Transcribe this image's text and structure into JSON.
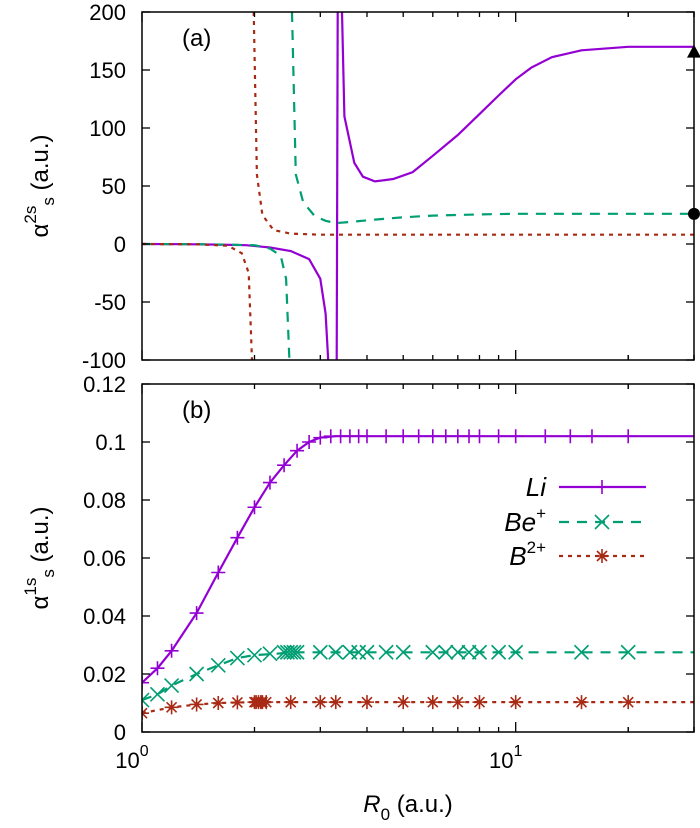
{
  "chart_data": [
    {
      "type": "line",
      "panel_label": "(a)",
      "ylabel": {
        "base": "α",
        "sup": "2s",
        "sub": "s",
        "unit": " (a.u.)"
      },
      "xscale": "log",
      "xlim": [
        1,
        30
      ],
      "ylim": [
        -100,
        200
      ],
      "yticks": [
        -100,
        -50,
        0,
        50,
        100,
        150,
        200
      ],
      "colors": {
        "Li": "#9400d3",
        "Be+": "#009e73",
        "B2+": "#a82a14"
      },
      "series": [
        {
          "key": "Li",
          "segments": [
            [
              [
                1.0,
                0
              ],
              [
                1.3,
                -0.2
              ],
              [
                1.6,
                -0.5
              ],
              [
                1.9,
                -1
              ],
              [
                2.2,
                -3
              ],
              [
                2.5,
                -6
              ],
              [
                2.8,
                -13
              ],
              [
                3.0,
                -30
              ],
              [
                3.1,
                -60
              ],
              [
                3.15,
                -100
              ]
            ],
            [
              [
                3.32,
                -100
              ],
              [
                3.34,
                200
              ]
            ],
            [
              [
                3.43,
                200
              ],
              [
                3.48,
                110
              ],
              [
                3.7,
                70
              ],
              [
                3.9,
                58
              ],
              [
                4.2,
                54
              ],
              [
                4.7,
                56
              ],
              [
                5.3,
                62
              ],
              [
                6.0,
                76
              ],
              [
                7.0,
                94
              ],
              [
                8.0,
                112
              ],
              [
                9.0,
                128
              ],
              [
                10.0,
                142
              ],
              [
                11.0,
                152
              ],
              [
                12.5,
                161
              ],
              [
                15.0,
                167
              ],
              [
                20.0,
                170
              ],
              [
                30.0,
                170
              ]
            ]
          ]
        },
        {
          "key": "Be+",
          "segments": [
            [
              [
                1.0,
                0
              ],
              [
                1.5,
                -0.3
              ],
              [
                2.0,
                -1
              ],
              [
                2.2,
                -4
              ],
              [
                2.35,
                -10
              ],
              [
                2.43,
                -30
              ],
              [
                2.48,
                -100
              ]
            ],
            [
              [
                2.52,
                200
              ],
              [
                2.58,
                60
              ],
              [
                2.7,
                36
              ],
              [
                2.9,
                24
              ],
              [
                3.1,
                20
              ],
              [
                3.3,
                18
              ],
              [
                3.6,
                19
              ],
              [
                4.2,
                21
              ],
              [
                5.0,
                23
              ],
              [
                6.0,
                24.5
              ],
              [
                8.0,
                25.5
              ],
              [
                10.0,
                26
              ],
              [
                15.0,
                26
              ],
              [
                30.0,
                26
              ]
            ]
          ]
        },
        {
          "key": "B2+",
          "segments": [
            [
              [
                1.0,
                0
              ],
              [
                1.4,
                -0.3
              ],
              [
                1.7,
                -1.5
              ],
              [
                1.85,
                -8
              ],
              [
                1.93,
                -25
              ],
              [
                1.97,
                -100
              ]
            ],
            [
              [
                1.99,
                200
              ],
              [
                2.03,
                60
              ],
              [
                2.1,
                25
              ],
              [
                2.25,
                12
              ],
              [
                2.5,
                9
              ],
              [
                3.0,
                8
              ],
              [
                5.0,
                8
              ],
              [
                10.0,
                8
              ],
              [
                30.0,
                8
              ]
            ]
          ]
        }
      ],
      "end_markers": [
        {
          "shape": "triangle",
          "x": 30,
          "y": 165
        },
        {
          "shape": "circle",
          "x": 30,
          "y": 26
        }
      ]
    },
    {
      "type": "line",
      "panel_label": "(b)",
      "ylabel": {
        "base": "α",
        "sup": "1s",
        "sub": "s",
        "unit": " (a.u.)"
      },
      "xlabel": {
        "base": "R",
        "sub": "0",
        "unit": " (a.u.)"
      },
      "xscale": "log",
      "xlim": [
        1,
        30
      ],
      "ylim": [
        0,
        0.12
      ],
      "yticks": [
        0,
        0.02,
        0.04,
        0.06,
        0.08,
        0.1,
        0.12
      ],
      "ytick_labels": [
        "0",
        "0.02",
        "0.04",
        "0.06",
        "0.08",
        "0.1",
        "0.12"
      ],
      "xticks": [
        1,
        10
      ],
      "xtick_labels": [
        {
          "base": "10",
          "sup": "0"
        },
        {
          "base": "10",
          "sup": "1"
        }
      ],
      "legend_position": "right",
      "series": [
        {
          "key": "Li",
          "legend": {
            "base": "Li",
            "sup": ""
          },
          "marker": "plus",
          "dash": "",
          "points": [
            [
              1.0,
              0.017
            ],
            [
              1.1,
              0.022
            ],
            [
              1.2,
              0.028
            ],
            [
              1.4,
              0.041
            ],
            [
              1.6,
              0.055
            ],
            [
              1.8,
              0.067
            ],
            [
              2.0,
              0.0775
            ],
            [
              2.2,
              0.086
            ],
            [
              2.4,
              0.092
            ],
            [
              2.6,
              0.097
            ],
            [
              2.8,
              0.1
            ],
            [
              3.0,
              0.1015
            ],
            [
              3.3,
              0.102
            ],
            [
              3.6,
              0.102
            ],
            [
              4.0,
              0.102
            ],
            [
              4.5,
              0.102
            ],
            [
              5.0,
              0.102
            ],
            [
              6.0,
              0.102
            ],
            [
              7.0,
              0.102
            ],
            [
              8.0,
              0.102
            ],
            [
              9.0,
              0.102
            ],
            [
              10.0,
              0.102
            ],
            [
              12.0,
              0.102
            ],
            [
              14.0,
              0.102
            ],
            [
              16.0,
              0.102
            ],
            [
              18.0,
              0.102
            ],
            [
              20.0,
              0.102
            ],
            [
              30.0,
              0.102
            ]
          ],
          "marker_points": [
            [
              1.0,
              0.017
            ],
            [
              1.1,
              0.022
            ],
            [
              1.2,
              0.028
            ],
            [
              1.4,
              0.041
            ],
            [
              1.6,
              0.055
            ],
            [
              1.8,
              0.067
            ],
            [
              2.0,
              0.0775
            ],
            [
              2.2,
              0.086
            ],
            [
              2.4,
              0.092
            ],
            [
              2.6,
              0.097
            ],
            [
              2.8,
              0.1
            ],
            [
              3.0,
              0.1015
            ],
            [
              3.2,
              0.102
            ],
            [
              3.4,
              0.102
            ],
            [
              3.6,
              0.102
            ],
            [
              3.8,
              0.102
            ],
            [
              4.0,
              0.102
            ],
            [
              4.5,
              0.102
            ],
            [
              5.0,
              0.102
            ],
            [
              5.5,
              0.102
            ],
            [
              6.0,
              0.102
            ],
            [
              6.5,
              0.102
            ],
            [
              7.0,
              0.102
            ],
            [
              7.5,
              0.102
            ],
            [
              8.0,
              0.102
            ],
            [
              9.0,
              0.102
            ],
            [
              10.0,
              0.102
            ],
            [
              12.0,
              0.102
            ],
            [
              14.0,
              0.102
            ],
            [
              16.0,
              0.102
            ],
            [
              20.0,
              0.102
            ]
          ]
        },
        {
          "key": "Be+",
          "legend": {
            "base": "Be",
            "sup": "+"
          },
          "marker": "cross",
          "dash": "10,8",
          "points": [
            [
              1.0,
              0.011
            ],
            [
              1.1,
              0.013
            ],
            [
              1.2,
              0.016
            ],
            [
              1.4,
              0.02
            ],
            [
              1.6,
              0.023
            ],
            [
              1.8,
              0.0255
            ],
            [
              2.0,
              0.0265
            ],
            [
              2.3,
              0.027
            ],
            [
              2.5,
              0.0275
            ],
            [
              3.0,
              0.0275
            ],
            [
              5.0,
              0.0275
            ],
            [
              10.0,
              0.0275
            ],
            [
              30.0,
              0.0275
            ]
          ],
          "marker_points": [
            [
              1.0,
              0.011
            ],
            [
              1.1,
              0.013
            ],
            [
              1.2,
              0.016
            ],
            [
              1.4,
              0.02
            ],
            [
              1.6,
              0.023
            ],
            [
              1.8,
              0.0255
            ],
            [
              2.0,
              0.0265
            ],
            [
              2.2,
              0.027
            ],
            [
              2.4,
              0.0275
            ],
            [
              2.45,
              0.0275
            ],
            [
              2.5,
              0.0275
            ],
            [
              2.55,
              0.0275
            ],
            [
              2.6,
              0.0275
            ],
            [
              3.0,
              0.0275
            ],
            [
              3.3,
              0.0275
            ],
            [
              3.6,
              0.0275
            ],
            [
              3.8,
              0.0275
            ],
            [
              4.0,
              0.0275
            ],
            [
              4.5,
              0.0275
            ],
            [
              5.0,
              0.0275
            ],
            [
              6.0,
              0.0275
            ],
            [
              6.5,
              0.0275
            ],
            [
              7.0,
              0.0275
            ],
            [
              7.5,
              0.0275
            ],
            [
              8.0,
              0.0275
            ],
            [
              9.0,
              0.0275
            ],
            [
              10.0,
              0.0275
            ],
            [
              15.0,
              0.0275
            ],
            [
              20.0,
              0.0275
            ]
          ]
        },
        {
          "key": "B2+",
          "legend": {
            "base": "B",
            "sup": "2+"
          },
          "marker": "star",
          "dash": "4,5",
          "points": [
            [
              1.0,
              0.0065
            ],
            [
              1.2,
              0.0085
            ],
            [
              1.4,
              0.0095
            ],
            [
              1.6,
              0.01
            ],
            [
              2.0,
              0.0103
            ],
            [
              3.0,
              0.0103
            ],
            [
              10.0,
              0.0103
            ],
            [
              30.0,
              0.0103
            ]
          ],
          "marker_points": [
            [
              1.0,
              0.0065
            ],
            [
              1.2,
              0.0085
            ],
            [
              1.4,
              0.0095
            ],
            [
              1.6,
              0.01
            ],
            [
              1.8,
              0.0102
            ],
            [
              2.0,
              0.0103
            ],
            [
              2.02,
              0.0103
            ],
            [
              2.05,
              0.0103
            ],
            [
              2.08,
              0.0103
            ],
            [
              2.1,
              0.0103
            ],
            [
              2.15,
              0.0103
            ],
            [
              2.5,
              0.0103
            ],
            [
              3.0,
              0.0103
            ],
            [
              3.3,
              0.0103
            ],
            [
              4.0,
              0.0103
            ],
            [
              5.0,
              0.0103
            ],
            [
              6.0,
              0.0103
            ],
            [
              7.0,
              0.0103
            ],
            [
              8.0,
              0.0103
            ],
            [
              10.0,
              0.0103
            ],
            [
              15.0,
              0.0103
            ],
            [
              20.0,
              0.0103
            ]
          ]
        }
      ]
    }
  ]
}
